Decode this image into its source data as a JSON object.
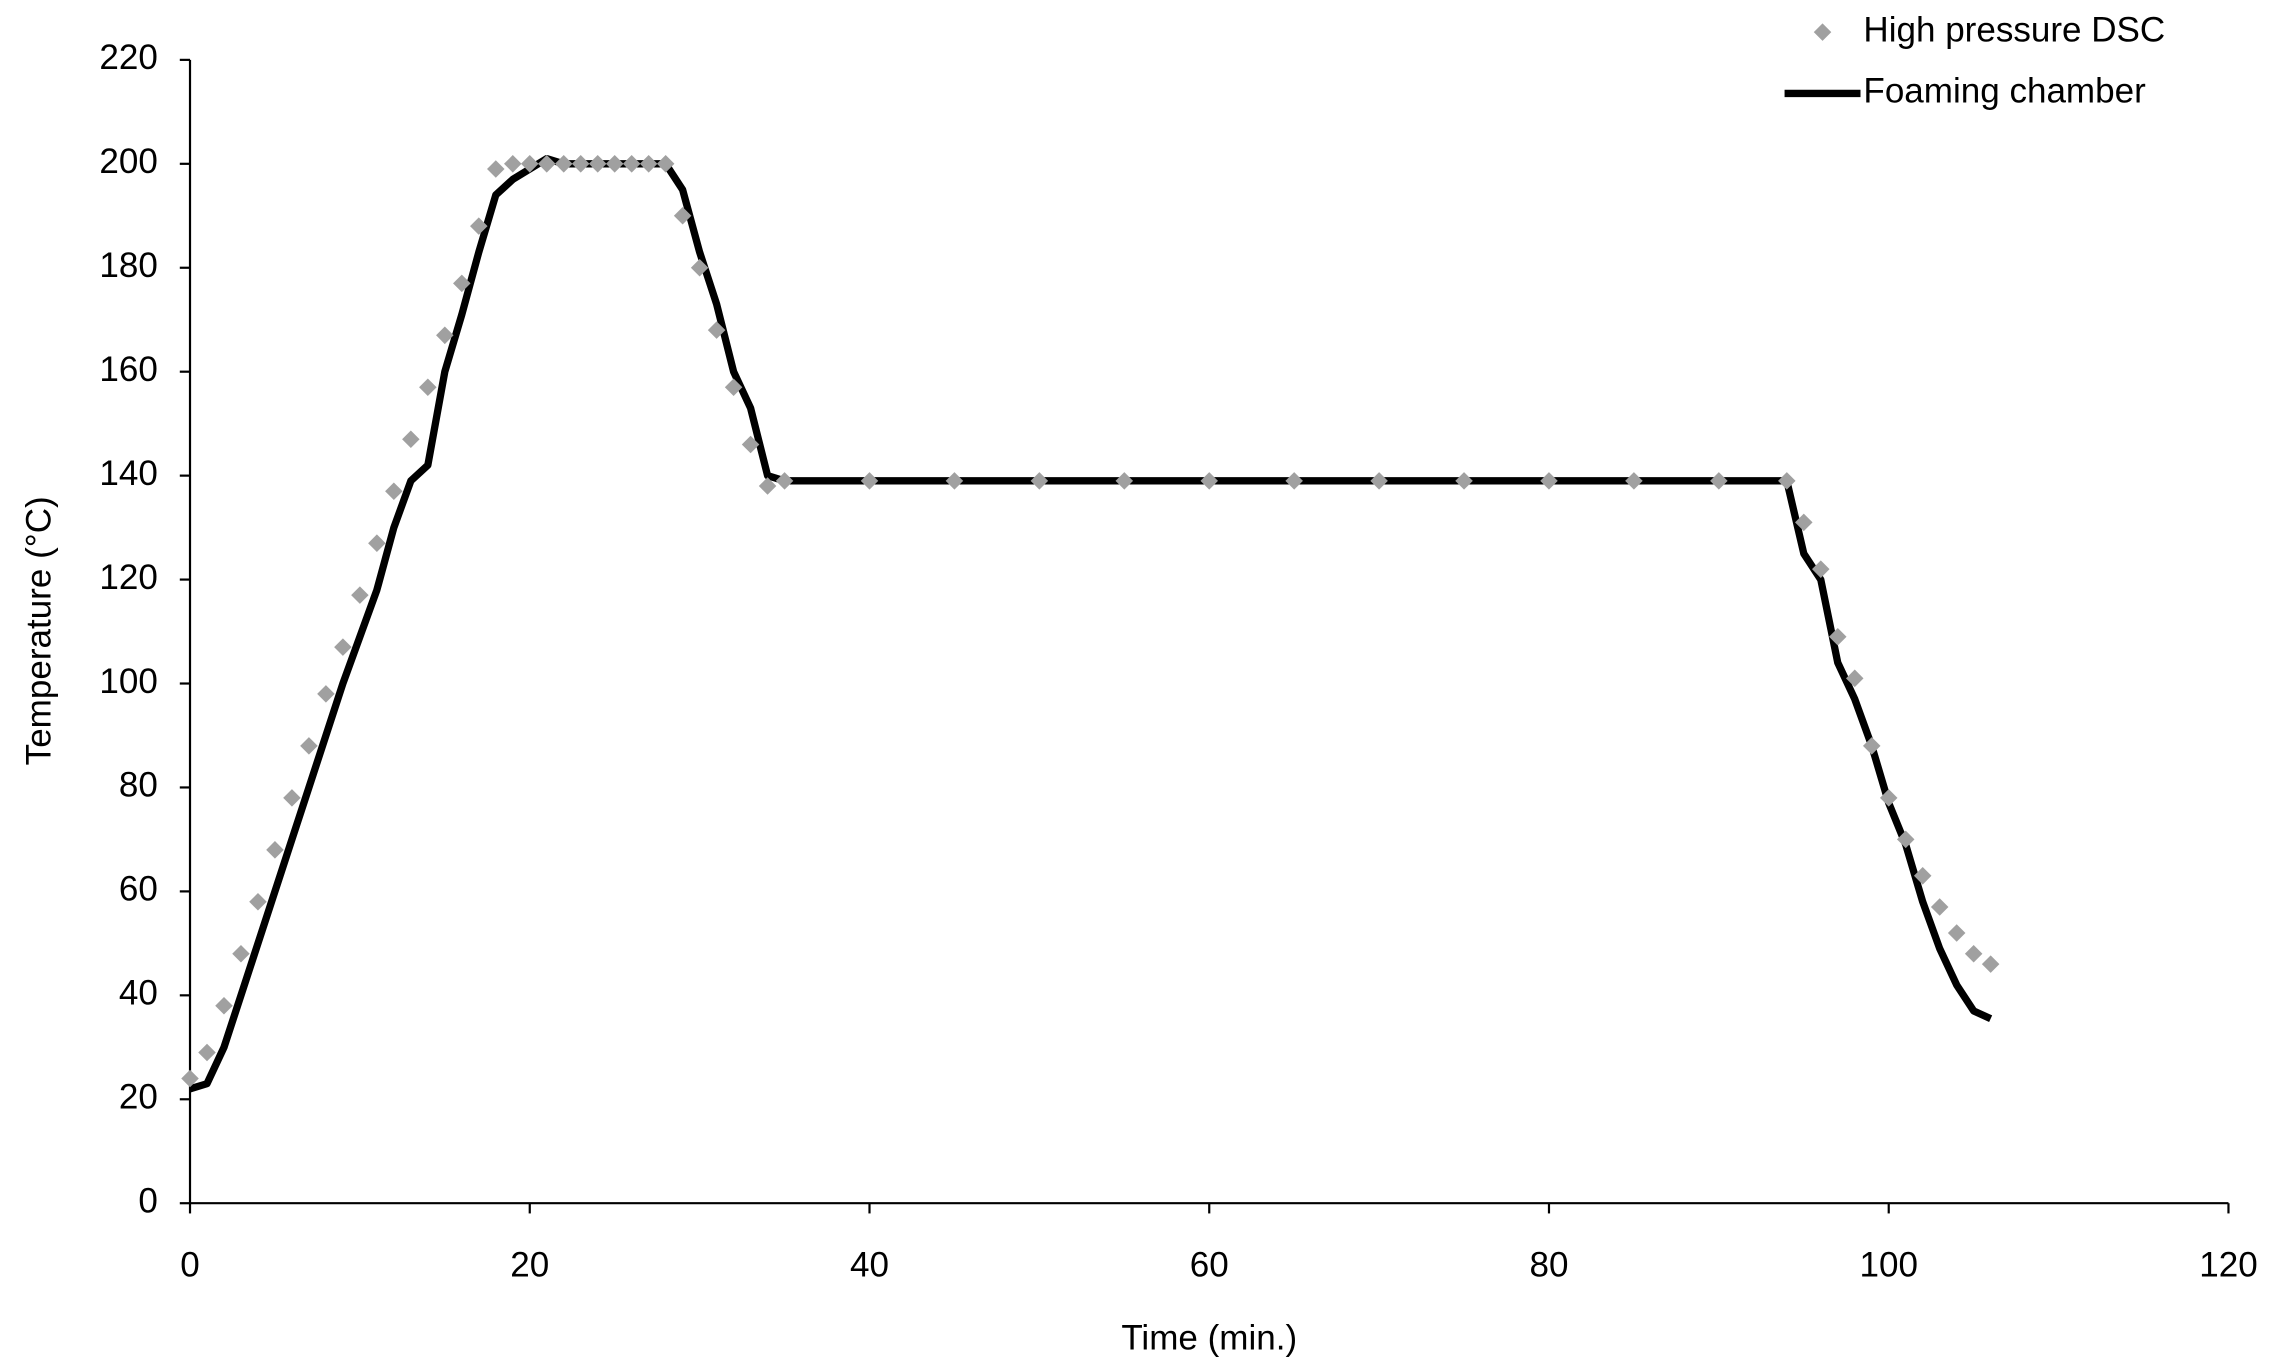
{
  "chart_data": {
    "type": "scatter-line",
    "x_label": "Time (min.)",
    "y_label": "Temperature (°C)",
    "xlim": [
      0,
      120
    ],
    "xticks": [
      0,
      20,
      40,
      60,
      80,
      100,
      120
    ],
    "ylim": [
      0,
      220
    ],
    "yticks": [
      0,
      20,
      40,
      60,
      80,
      100,
      120,
      140,
      160,
      180,
      200,
      220
    ],
    "grid": false,
    "legend": "top-right",
    "series": [
      {
        "name": "High pressure DSC",
        "kind": "scatter",
        "color": "#a0a0a0",
        "x": [
          0,
          1,
          2,
          3,
          4,
          5,
          6,
          7,
          8,
          9,
          10,
          11,
          12,
          13,
          14,
          15,
          16,
          17,
          18,
          19,
          20,
          21,
          22,
          23,
          24,
          25,
          26,
          27,
          28,
          29,
          30,
          31,
          32,
          33,
          34,
          35,
          40,
          45,
          50,
          55,
          60,
          65,
          70,
          75,
          80,
          85,
          90,
          94,
          95,
          96,
          97,
          98,
          99,
          100,
          101,
          102,
          103,
          104,
          105,
          106
        ],
        "values": [
          24,
          29,
          38,
          48,
          58,
          68,
          78,
          88,
          98,
          107,
          117,
          127,
          137,
          147,
          157,
          167,
          177,
          188,
          199,
          200,
          200,
          200,
          200,
          200,
          200,
          200,
          200,
          200,
          200,
          190,
          180,
          168,
          157,
          146,
          138,
          139,
          139,
          139,
          139,
          139,
          139,
          139,
          139,
          139,
          139,
          139,
          139,
          139,
          131,
          122,
          109,
          101,
          88,
          78,
          70,
          63,
          57,
          52,
          48,
          46
        ]
      },
      {
        "name": "Foaming chamber",
        "kind": "line",
        "color": "#000000",
        "x": [
          0,
          1,
          2,
          3,
          4,
          5,
          6,
          7,
          8,
          9,
          10,
          11,
          12,
          13,
          14,
          15,
          16,
          17,
          18,
          19,
          20,
          21,
          22,
          28,
          29,
          30,
          31,
          32,
          33,
          34,
          35,
          94,
          95,
          96,
          97,
          98,
          99,
          100,
          101,
          102,
          103,
          104,
          105,
          106
        ],
        "values": [
          22,
          23,
          30,
          40,
          50,
          60,
          70,
          80,
          90,
          100,
          109,
          118,
          130,
          139,
          142,
          160,
          171,
          183,
          194,
          197,
          199,
          201,
          200,
          200,
          195,
          183,
          173,
          160,
          153,
          140,
          139,
          139,
          125,
          120,
          104,
          97,
          88,
          77,
          69,
          58,
          49,
          42,
          37,
          35.5
        ]
      }
    ]
  }
}
